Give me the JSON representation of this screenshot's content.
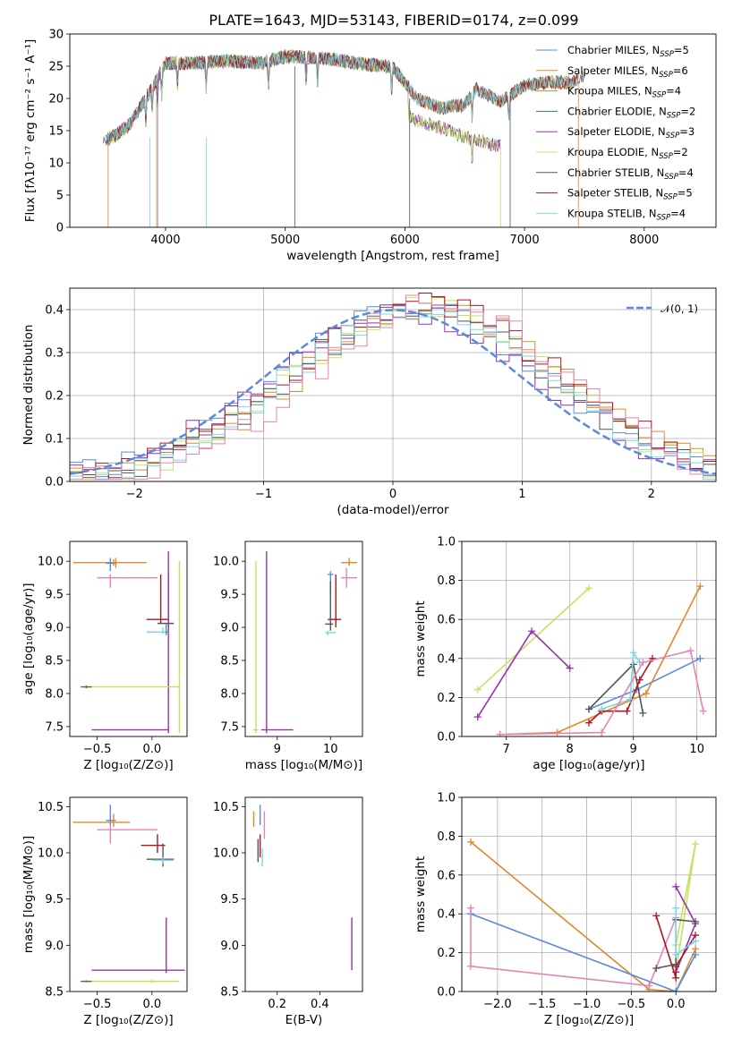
{
  "figure": {
    "title": "PLATE=1643, MJD=53143, FIBERID=0174, z=0.099"
  },
  "colors": {
    "chabrier_miles": "#5b8bd8",
    "salpeter_miles": "#e0892b",
    "kroupa_miles": "#9a9d30",
    "chabrier_elodie": "#3d7a3d",
    "salpeter_elodie": "#9b30b0",
    "kroupa_elodie": "#c7e062",
    "chabrier_stelib": "#555555",
    "salpeter_stelib": "#b0141e",
    "kroupa_stelib": "#7dd6e0",
    "hist_blue": "#5b8bd8",
    "hist_orange": "#e0892b",
    "hist_pink": "#e583b6",
    "normal_curve": "#5b8bd8"
  },
  "chart_data": [
    {
      "id": "spectrum",
      "type": "line",
      "xlabel": "wavelength [Angstrom, rest frame]",
      "ylabel": "Flux [fλ10⁻¹⁷ erg cm⁻² s⁻¹ A⁻¹]",
      "xlim": [
        3200,
        8600
      ],
      "ylim": [
        0,
        30
      ],
      "xticks": [
        "4000",
        "5000",
        "6000",
        "7000",
        "8000"
      ],
      "yticks": [
        "0",
        "5",
        "10",
        "15",
        "20",
        "25",
        "30"
      ],
      "grid": false,
      "legend_position": "upper-right",
      "legend": [
        "Chabrier MILES, N_SSP=5",
        "Salpeter MILES, N_SSP=6",
        "Kroupa MILES, N_SSP=4",
        "Chabrier ELODIE, N_SSP=2",
        "Salpeter ELODIE, N_SSP=3",
        "Kroupa ELODIE, N_SSP=2",
        "Chabrier STELIB, N_SSP=4",
        "Salpeter STELIB, N_SSP=5",
        "Kroupa STELIB, N_SSP=4"
      ],
      "envelope": {
        "x": [
          3500,
          3600,
          3700,
          3800,
          3900,
          4000,
          4200,
          4500,
          4800,
          5000,
          5300,
          5600,
          5900,
          6000,
          6100,
          6300,
          6500,
          6600,
          6800,
          7000,
          7200,
          7400,
          7500
        ],
        "y": [
          13.5,
          14.5,
          16,
          19,
          22,
          25.5,
          25.5,
          25.8,
          25.5,
          26.5,
          26.3,
          25.5,
          24.8,
          22.5,
          20,
          18.5,
          19,
          21.5,
          19.5,
          22,
          22.5,
          22.5,
          23.5
        ]
      },
      "elodie_drop": {
        "x": [
          6030,
          6100,
          6300,
          6500,
          6800
        ],
        "y": [
          17.5,
          16.5,
          15.5,
          14,
          12.5
        ]
      }
    },
    {
      "id": "residual_histogram",
      "type": "area",
      "xlabel": "(data-model)/error",
      "ylabel": "Normed distribution",
      "xlim": [
        -2.5,
        2.5
      ],
      "ylim": [
        0,
        0.45
      ],
      "xticks": [
        "−2",
        "−1",
        "0",
        "1",
        "2"
      ],
      "yticks": [
        "0.0",
        "0.1",
        "0.2",
        "0.3",
        "0.4"
      ],
      "grid": true,
      "legend": [
        "𝒩(0, 1)"
      ],
      "legend_position": "upper-right",
      "normal_curve": {
        "mu": 0,
        "sigma": 1
      },
      "series": [
        {
          "color": "#5b8bd8",
          "amp": 0.4,
          "mu": 0.15,
          "sigma": 1.05
        },
        {
          "color": "#e0892b",
          "amp": 0.41,
          "mu": 0.3,
          "sigma": 1.0
        },
        {
          "color": "#9b30b0",
          "amp": 0.39,
          "mu": 0.1,
          "sigma": 1.05
        },
        {
          "color": "#c7e062",
          "amp": 0.4,
          "mu": 0.25,
          "sigma": 1.0
        },
        {
          "color": "#555555",
          "amp": 0.4,
          "mu": 0.2,
          "sigma": 1.0
        },
        {
          "color": "#b0141e",
          "amp": 0.41,
          "mu": 0.25,
          "sigma": 1.05
        },
        {
          "color": "#7dd6e0",
          "amp": 0.4,
          "mu": 0.2,
          "sigma": 1.0
        },
        {
          "color": "#e583b6",
          "amp": 0.42,
          "mu": 0.35,
          "sigma": 0.95
        }
      ]
    },
    {
      "id": "age_vs_Z",
      "type": "scatter",
      "xlabel": "Z [log₁₀(Z/Z⊙)]",
      "ylabel": "age  [log₁₀(age/yr)]",
      "xlim": [
        -0.75,
        0.32
      ],
      "ylim": [
        7.35,
        10.3
      ],
      "xticks": [
        "−0.5",
        "0.0"
      ],
      "yticks": [
        "7.5",
        "8.0",
        "8.5",
        "9.0",
        "9.5",
        "10.0"
      ],
      "grid": false
    },
    {
      "id": "age_vs_mass",
      "type": "scatter",
      "xlabel": "mass [log₁₀(M/M⊙)]",
      "ylabel": "",
      "xlim": [
        8.4,
        10.6
      ],
      "ylim": [
        7.35,
        10.3
      ],
      "xticks": [
        "9",
        "10"
      ],
      "yticks": [
        "7.5",
        "8.0",
        "8.5",
        "9.0",
        "9.5",
        "10.0"
      ],
      "grid": false
    },
    {
      "id": "massweight_vs_age",
      "type": "line",
      "xlabel": "age  [log₁₀(age/yr)]",
      "ylabel": "mass weight",
      "xlim": [
        6.3,
        10.3
      ],
      "ylim": [
        0,
        1
      ],
      "xticks": [
        "7",
        "8",
        "9",
        "10"
      ],
      "yticks": [
        "0.0",
        "0.2",
        "0.4",
        "0.6",
        "0.8",
        "1.0"
      ],
      "grid": true,
      "series": [
        {
          "color": "#c7e062",
          "x": [
            6.55,
            8.3
          ],
          "y": [
            0.24,
            0.76
          ]
        },
        {
          "color": "#9b30b0",
          "x": [
            6.55,
            7.4,
            8.0
          ],
          "y": [
            0.1,
            0.54,
            0.35
          ]
        },
        {
          "color": "#5b8bd8",
          "x": [
            8.3,
            9.05,
            10.05
          ],
          "y": [
            0.14,
            0.24,
            0.4
          ]
        },
        {
          "color": "#e0892b",
          "x": [
            6.9,
            7.8,
            9.2,
            10.05
          ],
          "y": [
            0.01,
            0.02,
            0.22,
            0.77
          ]
        },
        {
          "color": "#555555",
          "x": [
            8.3,
            9.0,
            9.15
          ],
          "y": [
            0.14,
            0.37,
            0.12
          ]
        },
        {
          "color": "#b0141e",
          "x": [
            8.3,
            8.5,
            8.9,
            9.1,
            9.3
          ],
          "y": [
            0.07,
            0.13,
            0.13,
            0.29,
            0.4
          ]
        },
        {
          "color": "#7dd6e0",
          "x": [
            8.5,
            8.95,
            9.0,
            9.1
          ],
          "y": [
            0.14,
            0.19,
            0.43,
            0.38
          ]
        },
        {
          "color": "#e583b6",
          "x": [
            6.9,
            8.5,
            9.15,
            9.9,
            10.1
          ],
          "y": [
            0.01,
            0.02,
            0.38,
            0.44,
            0.13
          ]
        }
      ]
    },
    {
      "id": "mass_vs_Z",
      "type": "scatter",
      "xlabel": "Z [log₁₀(Z/Z⊙)]",
      "ylabel": "mass [log₁₀(M/M⊙)]",
      "xlim": [
        -0.75,
        0.32
      ],
      "ylim": [
        8.5,
        10.6
      ],
      "xticks": [
        "−0.5",
        "0.0"
      ],
      "yticks": [
        "8.5",
        "9.0",
        "9.5",
        "10.0",
        "10.5"
      ],
      "grid": false
    },
    {
      "id": "mass_vs_EBV",
      "type": "scatter",
      "xlabel": "E(B-V)",
      "ylabel": "",
      "xlim": [
        0.05,
        0.6
      ],
      "ylim": [
        8.5,
        10.6
      ],
      "xticks": [
        "0.2",
        "0.4"
      ],
      "yticks": [
        "8.5",
        "9.0",
        "9.5",
        "10.0",
        "10.5"
      ],
      "grid": false
    },
    {
      "id": "massweight_vs_Z",
      "type": "line",
      "xlabel": "Z [log₁₀(Z/Z⊙)]",
      "ylabel": "mass weight",
      "xlim": [
        -2.4,
        0.45
      ],
      "ylim": [
        0,
        1
      ],
      "xticks": [
        "−2.0",
        "−1.5",
        "−1.0",
        "−0.5",
        "0.0"
      ],
      "yticks": [
        "0.0",
        "0.2",
        "0.4",
        "0.6",
        "0.8",
        "1.0"
      ],
      "grid": true,
      "series": [
        {
          "color": "#e0892b",
          "x": [
            -2.3,
            -0.3,
            0.0,
            0.22
          ],
          "y": [
            0.77,
            0.01,
            0.0,
            0.22
          ]
        },
        {
          "color": "#5b8bd8",
          "x": [
            -2.3,
            0.0,
            0.22
          ],
          "y": [
            0.4,
            0.0,
            0.19
          ]
        },
        {
          "color": "#e583b6",
          "x": [
            -2.3,
            -2.3,
            -0.3,
            0.0
          ],
          "y": [
            0.43,
            0.13,
            0.03,
            0.38
          ]
        },
        {
          "color": "#c7e062",
          "x": [
            0.0,
            0.22,
            0.0
          ],
          "y": [
            0.24,
            0.76,
            0.1
          ]
        },
        {
          "color": "#9b30b0",
          "x": [
            0.0,
            0.22,
            0.0
          ],
          "y": [
            0.54,
            0.35,
            0.1
          ]
        },
        {
          "color": "#b0141e",
          "x": [
            -0.22,
            0.0,
            0.0,
            0.22
          ],
          "y": [
            0.39,
            0.07,
            0.13,
            0.29
          ]
        },
        {
          "color": "#555555",
          "x": [
            -0.22,
            0.0,
            0.0,
            0.22
          ],
          "y": [
            0.12,
            0.14,
            0.37,
            0.36
          ]
        },
        {
          "color": "#7dd6e0",
          "x": [
            0.0,
            0.0,
            0.22
          ],
          "y": [
            0.43,
            0.19,
            0.26
          ]
        }
      ]
    }
  ]
}
